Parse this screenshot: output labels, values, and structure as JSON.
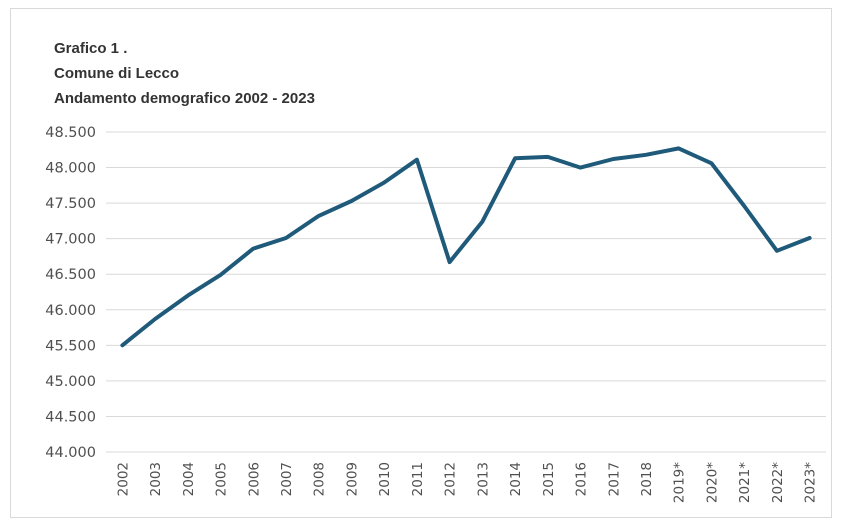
{
  "chart_data": {
    "type": "line",
    "title_lines": [
      "Grafico 1 .",
      "Comune di Lecco",
      "Andamento demografico 2002 - 2023"
    ],
    "xlabel": "",
    "ylabel": "",
    "categories": [
      "2002",
      "2003",
      "2004",
      "2005",
      "2006",
      "2007",
      "2008",
      "2009",
      "2010",
      "2011",
      "2012",
      "2013",
      "2014",
      "2015",
      "2016",
      "2017",
      "2018",
      "2019*",
      "2020*",
      "2021*",
      "2022*",
      "2023*"
    ],
    "series": [
      {
        "values": [
          45500,
          45870,
          46200,
          46490,
          46860,
          47010,
          47320,
          47530,
          47790,
          48110,
          46670,
          47240,
          48130,
          48150,
          48000,
          48120,
          48180,
          48270,
          48060,
          47460,
          46830,
          47010
        ],
        "color": "#1f5a7a"
      }
    ],
    "y_ticks": [
      "48.500",
      "48.000",
      "47.500",
      "47.000",
      "46.500",
      "46.000",
      "45.500",
      "45.000",
      "44.500",
      "44.000"
    ],
    "ylim": [
      44000,
      48500
    ],
    "grid": "horizontal",
    "legend": "none"
  }
}
